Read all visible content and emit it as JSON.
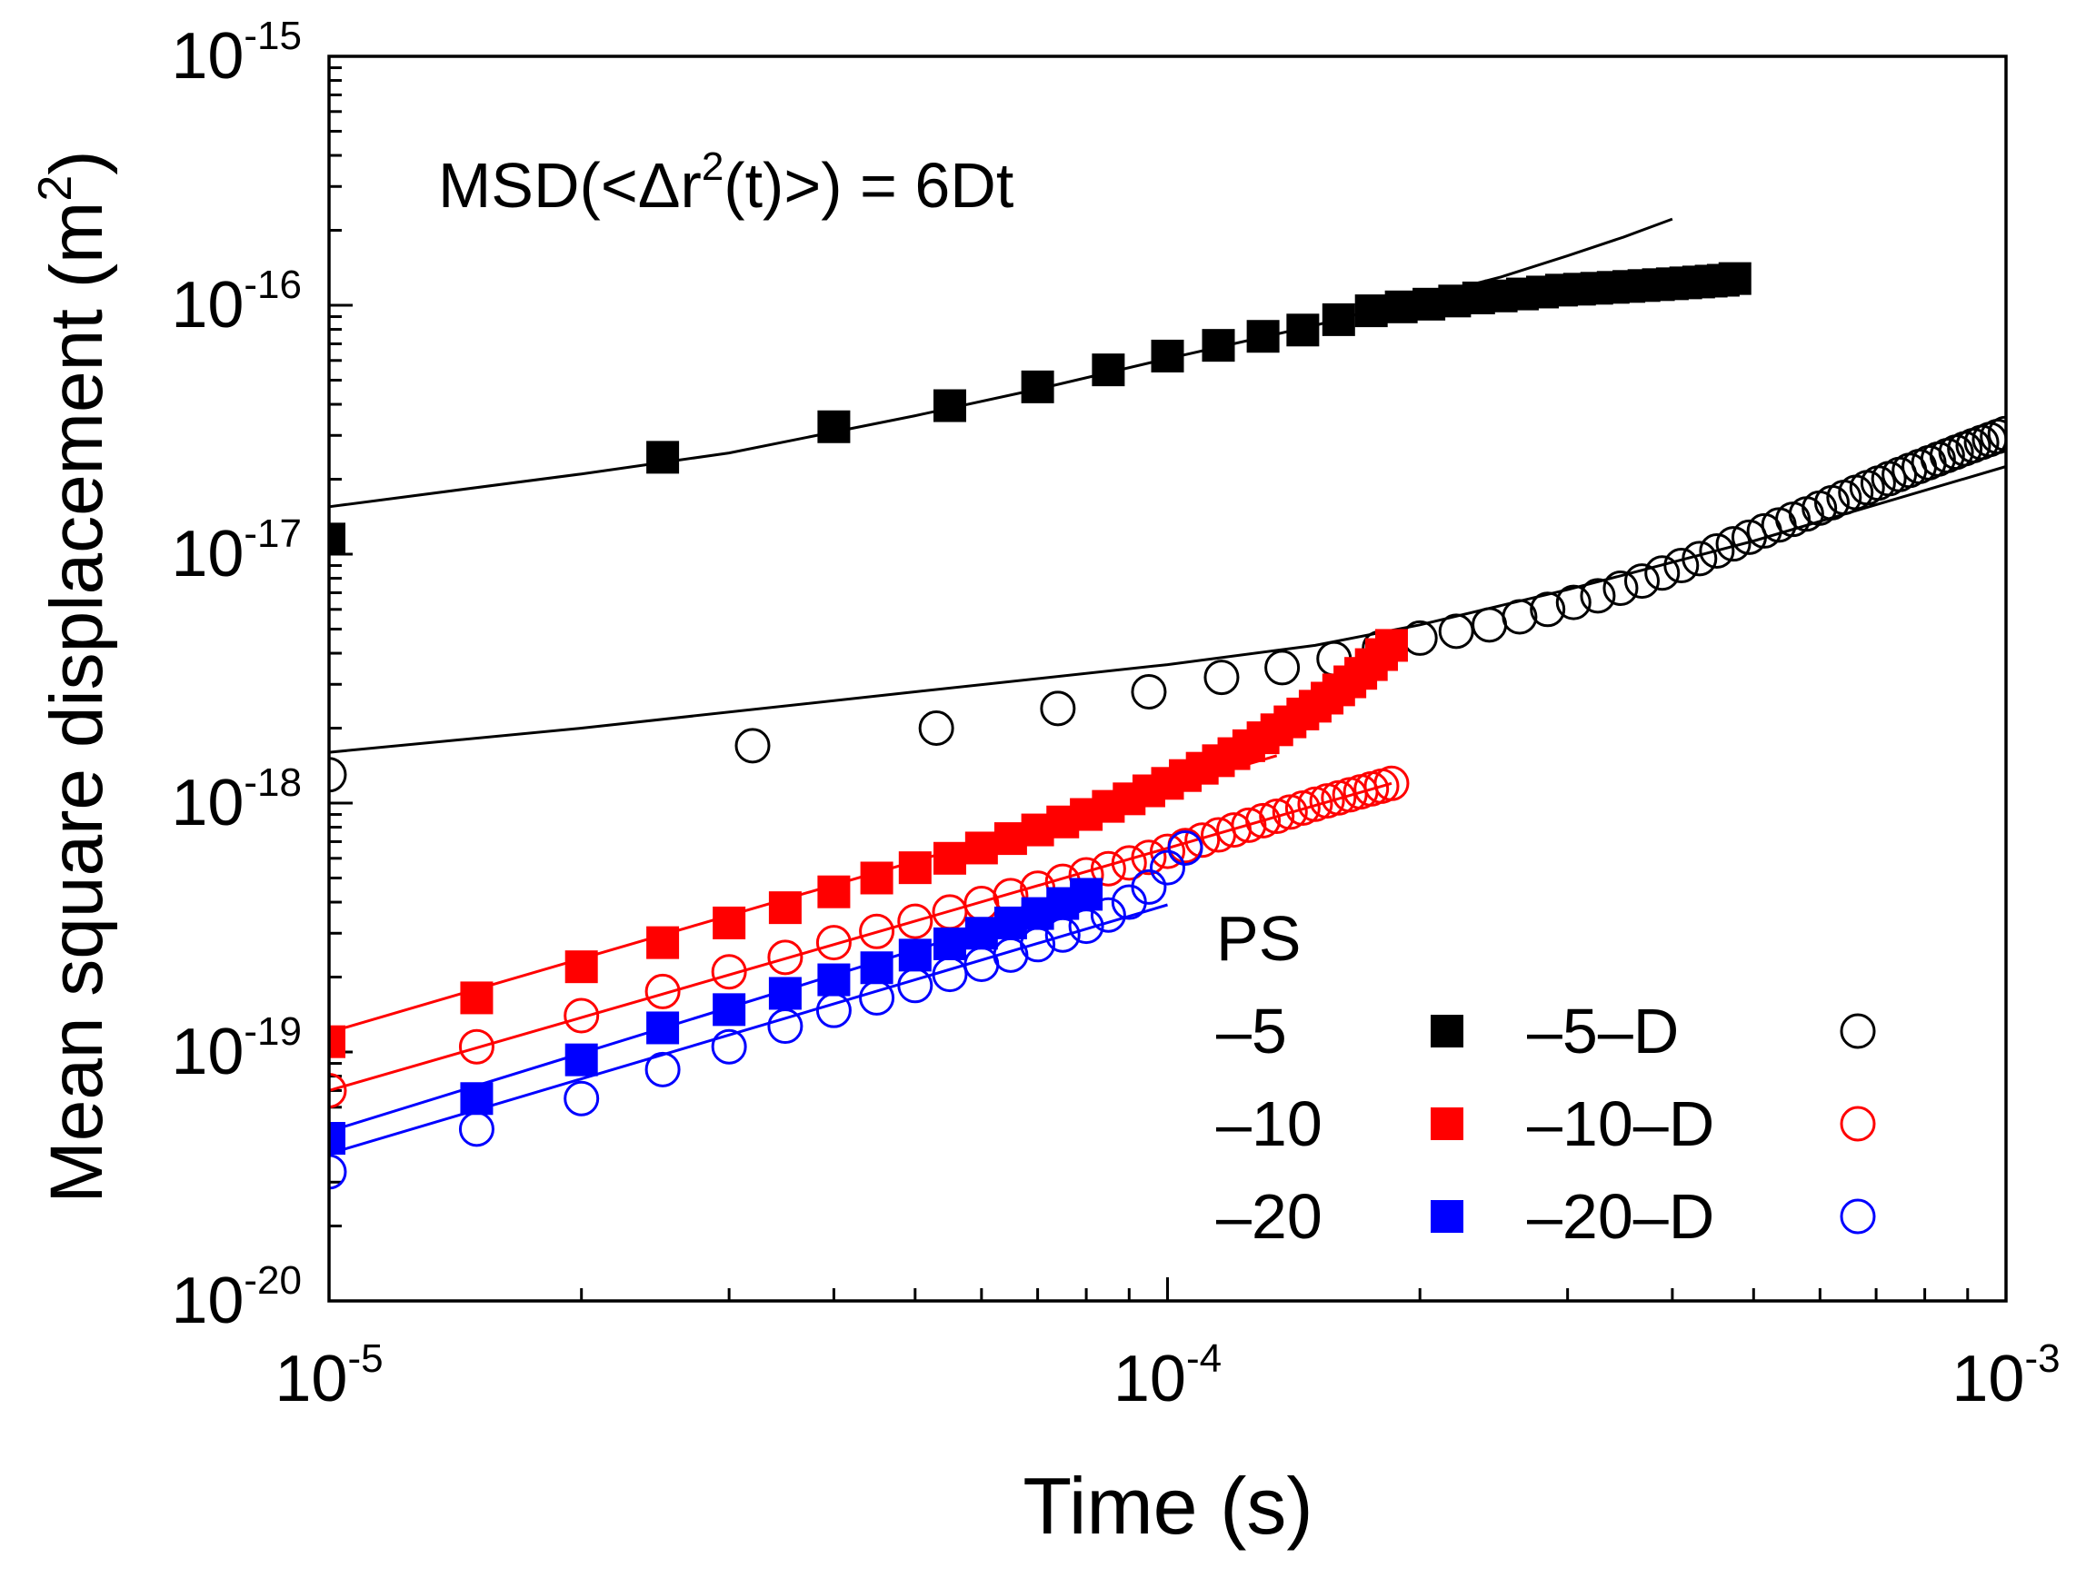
{
  "colors": {
    "black": "#000000",
    "red": "#ff0000",
    "blue": "#0000ff"
  },
  "chart_data": {
    "type": "scatter",
    "title": "",
    "annotation": {
      "prefix": "MSD(<Δr",
      "sup": "2",
      "suffix": "(t)>) = 6Dt"
    },
    "xlabel": "Time (s)",
    "ylabel": {
      "main": "Mean square displacement (m",
      "sup": "2",
      "close": ")"
    },
    "xscale": "log",
    "yscale": "log",
    "xlim": [
      1e-05,
      0.001
    ],
    "ylim": [
      1e-20,
      1e-15
    ],
    "x_ticks": [
      {
        "value": 1e-05,
        "base": "10",
        "exp": "-5"
      },
      {
        "value": 0.0001,
        "base": "10",
        "exp": "-4"
      },
      {
        "value": 0.001,
        "base": "10",
        "exp": "-3"
      }
    ],
    "y_ticks": [
      {
        "value": 1e-20,
        "base": "10",
        "exp": "-20"
      },
      {
        "value": 1e-19,
        "base": "10",
        "exp": "-19"
      },
      {
        "value": 1e-18,
        "base": "10",
        "exp": "-18"
      },
      {
        "value": 1e-17,
        "base": "10",
        "exp": "-17"
      },
      {
        "value": 1e-16,
        "base": "10",
        "exp": "-16"
      },
      {
        "value": 1e-15,
        "base": "10",
        "exp": "-15"
      }
    ],
    "legend_title": "PS",
    "legend_placement": "bottom-right",
    "legend": [
      {
        "filled_label": "–5",
        "filled_series": "s-5",
        "open_label": "–5–D",
        "open_series": "s-5D",
        "color": "#000000"
      },
      {
        "filled_label": "–10",
        "filled_series": "s-10",
        "open_label": "–10–D",
        "open_series": "s-10D",
        "color": "#ff0000"
      },
      {
        "filled_label": "–20",
        "filled_series": "s-20",
        "open_label": "–20–D",
        "open_series": "s-20D",
        "color": "#0000ff"
      }
    ],
    "series": [
      {
        "id": "s-5",
        "name": "–5",
        "marker": "square-filled",
        "color": "#000000",
        "x": [
          1e-05,
          2.5e-05,
          4e-05,
          5.5e-05,
          7e-05,
          8.5e-05,
          0.0001,
          0.000115,
          0.00013,
          0.000145,
          0.00016,
          0.000175,
          0.00019,
          0.000205,
          0.00022,
          0.000235,
          0.00025,
          0.000265,
          0.00028,
          0.000295,
          0.00031,
          0.000325,
          0.00034,
          0.000355,
          0.00037,
          0.000385,
          0.0004,
          0.000415,
          0.00043,
          0.000445,
          0.00046,
          0.000475
        ],
        "y": [
          1.15e-17,
          2.45e-17,
          3.25e-17,
          3.95e-17,
          4.7e-17,
          5.5e-17,
          6.25e-17,
          6.9e-17,
          7.5e-17,
          7.95e-17,
          8.75e-17,
          9.5e-17,
          9.85e-17,
          1.01e-16,
          1.04e-16,
          1.07e-16,
          1.09e-16,
          1.11e-16,
          1.13e-16,
          1.15e-16,
          1.16e-16,
          1.17e-16,
          1.18e-16,
          1.19e-16,
          1.2e-16,
          1.21e-16,
          1.22e-16,
          1.23e-16,
          1.24e-16,
          1.25e-16,
          1.26e-16,
          1.28e-16
        ]
      },
      {
        "id": "s-5D",
        "name": "–5–D",
        "marker": "circle-open",
        "color": "#000000",
        "x": [
          1e-05,
          3.2e-05,
          5.3e-05,
          7.4e-05,
          9.5e-05,
          0.000116,
          0.000137,
          0.000158,
          0.000179,
          0.0002,
          0.000221,
          0.000242,
          0.000263,
          0.000284,
          0.000305,
          0.000326,
          0.000347,
          0.000368,
          0.000389,
          0.00041,
          0.000431,
          0.000452,
          0.000473,
          0.000494,
          0.000515,
          0.000536,
          0.000557,
          0.000578,
          0.000599,
          0.00062,
          0.000641,
          0.000662,
          0.000683,
          0.000704,
          0.000725,
          0.000746,
          0.000767,
          0.000788,
          0.000809,
          0.00083,
          0.000851,
          0.000872,
          0.000893,
          0.000914,
          0.000935,
          0.000956,
          0.000977,
          0.000998
        ],
        "y": [
          1.3e-18,
          1.7e-18,
          2e-18,
          2.4e-18,
          2.8e-18,
          3.2e-18,
          3.5e-18,
          3.8e-18,
          4.2e-18,
          4.6e-18,
          4.9e-18,
          5.2e-18,
          5.6e-18,
          6e-18,
          6.4e-18,
          6.8e-18,
          7.3e-18,
          7.8e-18,
          8.4e-18,
          9e-18,
          9.6e-18,
          1.03e-17,
          1.1e-17,
          1.17e-17,
          1.24e-17,
          1.31e-17,
          1.38e-17,
          1.45e-17,
          1.53e-17,
          1.61e-17,
          1.69e-17,
          1.77e-17,
          1.85e-17,
          1.93e-17,
          2.01e-17,
          2.09e-17,
          2.17e-17,
          2.25e-17,
          2.33e-17,
          2.41e-17,
          2.49e-17,
          2.57e-17,
          2.65e-17,
          2.73e-17,
          2.81e-17,
          2.89e-17,
          2.97e-17,
          3.05e-17
        ]
      },
      {
        "id": "s-10",
        "name": "–10",
        "marker": "square-filled",
        "color": "#ff0000",
        "x": [
          1e-05,
          1.5e-05,
          2e-05,
          2.5e-05,
          3e-05,
          3.5e-05,
          4e-05,
          4.5e-05,
          5e-05,
          5.5e-05,
          6e-05,
          6.5e-05,
          7e-05,
          7.5e-05,
          8e-05,
          8.5e-05,
          9e-05,
          9.5e-05,
          0.0001,
          0.000105,
          0.00011,
          0.000115,
          0.00012,
          0.000125,
          0.00013,
          0.000135,
          0.00014,
          0.000145,
          0.00015,
          0.000155,
          0.00016,
          0.000165,
          0.00017,
          0.000175,
          0.00018,
          0.000185
        ],
        "y": [
          1.1e-19,
          1.65e-19,
          2.2e-19,
          2.75e-19,
          3.3e-19,
          3.8e-19,
          4.4e-19,
          5e-19,
          5.5e-19,
          6e-19,
          6.6e-19,
          7.2e-19,
          7.8e-19,
          8.4e-19,
          9e-19,
          9.7e-19,
          1.04e-18,
          1.12e-18,
          1.2e-18,
          1.29e-18,
          1.38e-18,
          1.48e-18,
          1.58e-18,
          1.7e-18,
          1.83e-18,
          1.97e-18,
          2.12e-18,
          2.28e-18,
          2.45e-18,
          2.64e-18,
          2.85e-18,
          3.07e-18,
          3.32e-18,
          3.6e-18,
          3.95e-18,
          4.3e-18
        ]
      },
      {
        "id": "s-10D",
        "name": "–10–D",
        "marker": "circle-open",
        "color": "#ff0000",
        "x": [
          1e-05,
          1.5e-05,
          2e-05,
          2.5e-05,
          3e-05,
          3.5e-05,
          4e-05,
          4.5e-05,
          5e-05,
          5.5e-05,
          6e-05,
          6.5e-05,
          7e-05,
          7.5e-05,
          8e-05,
          8.5e-05,
          9e-05,
          9.5e-05,
          0.0001,
          0.000105,
          0.00011,
          0.000115,
          0.00012,
          0.000125,
          0.00013,
          0.000135,
          0.00014,
          0.000145,
          0.00015,
          0.000155,
          0.00016,
          0.000165,
          0.00017,
          0.000175,
          0.00018,
          0.000185
        ],
        "y": [
          7e-20,
          1.05e-19,
          1.4e-19,
          1.75e-19,
          2.1e-19,
          2.4e-19,
          2.75e-19,
          3.05e-19,
          3.35e-19,
          3.65e-19,
          3.95e-19,
          4.25e-19,
          4.55e-19,
          4.85e-19,
          5.15e-19,
          5.45e-19,
          5.75e-19,
          6.05e-19,
          6.4e-19,
          6.75e-19,
          7.1e-19,
          7.45e-19,
          7.8e-19,
          8.15e-19,
          8.5e-19,
          8.85e-19,
          9.2e-19,
          9.55e-19,
          9.9e-19,
          1.02e-18,
          1.05e-18,
          1.08e-18,
          1.11e-18,
          1.14e-18,
          1.17e-18,
          1.2e-18
        ]
      },
      {
        "id": "s-20",
        "name": "–20",
        "marker": "square-filled",
        "color": "#0000ff",
        "x": [
          1e-05,
          1.5e-05,
          2e-05,
          2.5e-05,
          3e-05,
          3.5e-05,
          4e-05,
          4.5e-05,
          5e-05,
          5.5e-05,
          6e-05,
          6.5e-05,
          7e-05,
          7.5e-05,
          8e-05
        ],
        "y": [
          4.5e-20,
          6.5e-20,
          9.3e-20,
          1.25e-19,
          1.48e-19,
          1.72e-19,
          1.95e-19,
          2.18e-19,
          2.45e-19,
          2.72e-19,
          3e-19,
          3.3e-19,
          3.6e-19,
          3.95e-19,
          4.3e-19
        ]
      },
      {
        "id": "s-20D",
        "name": "–20–D",
        "marker": "circle-open",
        "color": "#0000ff",
        "x": [
          1e-05,
          1.5e-05,
          2e-05,
          2.5e-05,
          3e-05,
          3.5e-05,
          4e-05,
          4.5e-05,
          5e-05,
          5.5e-05,
          6e-05,
          6.5e-05,
          7e-05,
          7.5e-05,
          8e-05,
          8.5e-05,
          9e-05,
          9.5e-05,
          0.0001,
          0.000105
        ],
        "y": [
          3.3e-20,
          4.9e-20,
          6.5e-20,
          8.5e-20,
          1.05e-19,
          1.27e-19,
          1.47e-19,
          1.65e-19,
          1.85e-19,
          2.05e-19,
          2.25e-19,
          2.45e-19,
          2.7e-19,
          2.95e-19,
          3.2e-19,
          3.55e-19,
          4e-19,
          4.6e-19,
          5.5e-19,
          6.6e-19
        ]
      }
    ],
    "fits": [
      {
        "id": "fit-5",
        "color": "#000000",
        "x": [
          1e-05,
          2e-05,
          3e-05,
          5e-05,
          7e-05,
          0.0001,
          0.00015,
          0.0002,
          0.00025,
          0.0003,
          0.00035,
          0.0004
        ],
        "y": [
          1.55e-17,
          2.1e-17,
          2.55e-17,
          3.6e-17,
          4.6e-17,
          6.1e-17,
          8.3e-17,
          1.07e-16,
          1.3e-16,
          1.58e-16,
          1.88e-16,
          2.22e-16
        ]
      },
      {
        "id": "fit-5D",
        "color": "#000000",
        "x": [
          1e-05,
          2e-05,
          5e-05,
          0.0001,
          0.00015,
          0.0002,
          0.0003,
          0.0005,
          0.0007,
          0.001
        ],
        "y": [
          1.6e-18,
          2e-18,
          2.8e-18,
          3.6e-18,
          4.3e-18,
          5.2e-18,
          7.2e-18,
          1.13e-17,
          1.58e-17,
          2.25e-17
        ]
      },
      {
        "id": "fit-10",
        "color": "#ff0000",
        "x": [
          1e-05,
          0.000135
        ],
        "y": [
          1.2e-19,
          1.55e-18
        ]
      },
      {
        "id": "fit-10D",
        "color": "#ff0000",
        "x": [
          1e-05,
          0.000185
        ],
        "y": [
          7e-20,
          1.2e-18
        ]
      },
      {
        "id": "fit-20",
        "color": "#0000ff",
        "x": [
          1e-05,
          8.2e-05
        ],
        "y": [
          4.8e-20,
          4.3e-19
        ]
      },
      {
        "id": "fit-20D",
        "color": "#0000ff",
        "x": [
          1e-05,
          0.0001
        ],
        "y": [
          3.9e-20,
          3.9e-19
        ]
      }
    ]
  }
}
